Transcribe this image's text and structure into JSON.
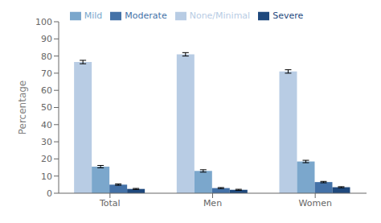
{
  "chart_data": {
    "type": "bar",
    "categories": [
      "Total",
      "Men",
      "Women"
    ],
    "series": [
      {
        "name": "None/Minimal",
        "color": "#b8cce4",
        "values": [
          76.5,
          81.0,
          71.0
        ],
        "errors": [
          1.0,
          1.0,
          1.0
        ]
      },
      {
        "name": "Mild",
        "color": "#7ba7cc",
        "values": [
          15.5,
          13.0,
          18.5
        ],
        "errors": [
          0.7,
          0.7,
          0.7
        ]
      },
      {
        "name": "Moderate",
        "color": "#4472a8",
        "values": [
          5.0,
          3.0,
          6.5
        ],
        "errors": [
          0.4,
          0.3,
          0.4
        ]
      },
      {
        "name": "Severe",
        "color": "#1f497d",
        "values": [
          2.5,
          2.0,
          3.5
        ],
        "errors": [
          0.3,
          0.3,
          0.3
        ]
      }
    ],
    "ylabel": "Percentage",
    "ylim": [
      0,
      100
    ],
    "yticks": [
      0,
      10,
      20,
      30,
      40,
      50,
      60,
      70,
      80,
      90,
      100
    ],
    "grid": false,
    "legend": "top"
  }
}
